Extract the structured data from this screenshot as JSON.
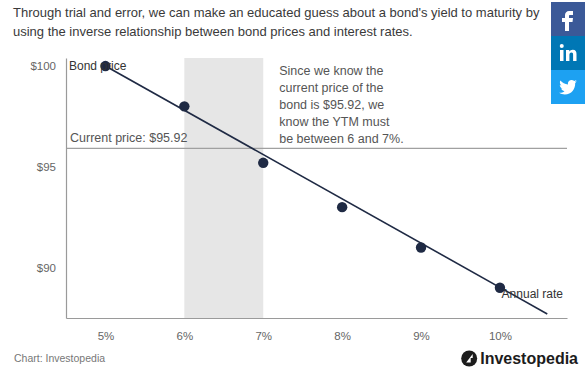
{
  "chart_data": {
    "type": "scatter",
    "title": [
      "Through trial and error, we can make an educated guess about a bond's yield to maturity by",
      "using the inverse relationship between bond prices and interest rates."
    ],
    "x_label": "Annual rate",
    "y_label": "Bond price",
    "series": [
      {
        "type": "scatter",
        "marker": "circle",
        "color": "#1f2a44",
        "x": [
          5,
          6,
          7,
          8,
          9,
          10
        ],
        "values": [
          100,
          98,
          95.2,
          93,
          91,
          89
        ]
      },
      {
        "type": "line",
        "line_style": "solid",
        "color": "#1f2a44",
        "x": [
          5,
          10.6
        ],
        "values": [
          100,
          87.7
        ]
      }
    ],
    "xlim": [
      4.5,
      10.85
    ],
    "xticks": [
      {
        "value": 5,
        "label": "5%"
      },
      {
        "value": 6,
        "label": "6%"
      },
      {
        "value": 7,
        "label": "7%"
      },
      {
        "value": 8,
        "label": "8%"
      },
      {
        "value": 9,
        "label": "9%"
      },
      {
        "value": 10,
        "label": "10%"
      }
    ],
    "ylim": [
      87.5,
      100.4
    ],
    "yticks": [
      {
        "value": 90,
        "label": "$90"
      },
      {
        "value": 95,
        "label": "$95"
      },
      {
        "value": 100,
        "label": "$100"
      }
    ],
    "grid": false,
    "shaded_range": {
      "x": [
        6,
        7
      ],
      "color": "#e6e6e6"
    },
    "reference_line": {
      "value": 95.92,
      "label": "Current price: $95.92"
    },
    "annotation": [
      "Since we know the",
      "current price of the",
      "bond is $95.92, we",
      "know the YTM must",
      "be between 6 and 7%."
    ],
    "source": "Chart: Investopedia",
    "logo": "Investopedia"
  }
}
